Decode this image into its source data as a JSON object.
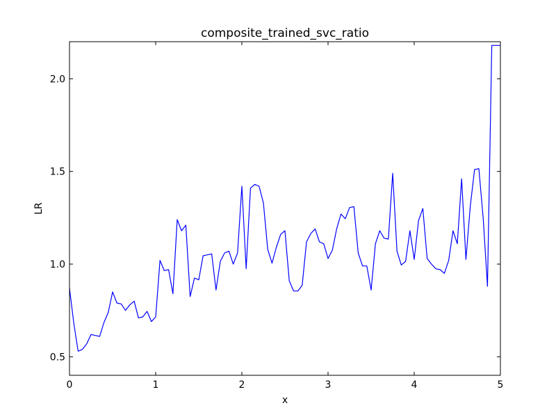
{
  "chart_data": {
    "type": "line",
    "title": "composite_trained_svc_ratio",
    "xlabel": "x",
    "ylabel": "LR",
    "xlim": [
      0,
      5
    ],
    "ylim": [
      0.4,
      2.2
    ],
    "grid": false,
    "x_ticks": [
      0,
      1,
      2,
      3,
      4,
      5
    ],
    "x_tick_labels": [
      "0",
      "1",
      "2",
      "3",
      "4",
      "5"
    ],
    "y_ticks": [
      0.5,
      1.0,
      1.5,
      2.0
    ],
    "y_tick_labels": [
      "0.5",
      "1.0",
      "1.5",
      "2.0"
    ],
    "series_color": "#0000ff",
    "series": [
      {
        "x": [
          0.0,
          0.05,
          0.1,
          0.15,
          0.2,
          0.25,
          0.3,
          0.35,
          0.4,
          0.45,
          0.5,
          0.55,
          0.6,
          0.65,
          0.7,
          0.75,
          0.8,
          0.85,
          0.9,
          0.95,
          1.0,
          1.05,
          1.1,
          1.15,
          1.2,
          1.25,
          1.3,
          1.35,
          1.4,
          1.45,
          1.5,
          1.55,
          1.6,
          1.65,
          1.7,
          1.75,
          1.8,
          1.85,
          1.9,
          1.95,
          2.0,
          2.05,
          2.1,
          2.15,
          2.2,
          2.25,
          2.3,
          2.35,
          2.4,
          2.45,
          2.5,
          2.55,
          2.6,
          2.65,
          2.7,
          2.75,
          2.8,
          2.85,
          2.9,
          2.95,
          3.0,
          3.05,
          3.1,
          3.15,
          3.2,
          3.25,
          3.3,
          3.35,
          3.4,
          3.45,
          3.5,
          3.55,
          3.6,
          3.65,
          3.7,
          3.75,
          3.8,
          3.85,
          3.9,
          3.95,
          4.0,
          4.05,
          4.1,
          4.15,
          4.2,
          4.25,
          4.3,
          4.35,
          4.4,
          4.45,
          4.5,
          4.55,
          4.6,
          4.65,
          4.7,
          4.75,
          4.8,
          4.85,
          4.9,
          4.95,
          5.0
        ],
        "values": [
          0.87,
          0.68,
          0.53,
          0.54,
          0.57,
          0.62,
          0.615,
          0.61,
          0.685,
          0.74,
          0.85,
          0.79,
          0.785,
          0.75,
          0.78,
          0.8,
          0.71,
          0.715,
          0.745,
          0.69,
          0.715,
          1.02,
          0.965,
          0.97,
          0.84,
          1.24,
          1.18,
          1.21,
          0.825,
          0.925,
          0.915,
          1.045,
          1.05,
          1.055,
          0.86,
          1.015,
          1.06,
          1.07,
          1.0,
          1.06,
          1.42,
          0.975,
          1.41,
          1.43,
          1.42,
          1.33,
          1.08,
          1.005,
          1.09,
          1.16,
          1.18,
          0.91,
          0.855,
          0.855,
          0.885,
          1.12,
          1.165,
          1.19,
          1.12,
          1.11,
          1.03,
          1.075,
          1.19,
          1.27,
          1.245,
          1.305,
          1.31,
          1.06,
          0.99,
          0.99,
          0.86,
          1.11,
          1.18,
          1.14,
          1.135,
          1.49,
          1.07,
          0.995,
          1.015,
          1.18,
          1.025,
          1.235,
          1.3,
          1.03,
          1.0,
          0.975,
          0.97,
          0.95,
          1.02,
          1.18,
          1.11,
          1.46,
          1.025,
          1.31,
          1.51,
          1.515,
          1.25,
          0.88,
          2.18,
          2.18,
          2.18
        ]
      }
    ]
  }
}
